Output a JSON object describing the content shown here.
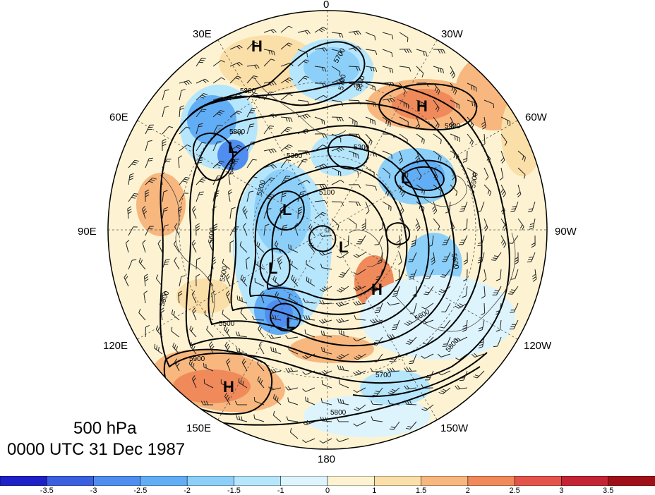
{
  "title": {
    "level": "500 hPa",
    "time": "0000 UTC 31 Dec 1987"
  },
  "map": {
    "projection": "north-polar-stereographic",
    "longitude_labels": [
      "0",
      "30W",
      "60W",
      "90W",
      "120W",
      "150W",
      "180",
      "150E",
      "120E",
      "90E",
      "60E",
      "30E"
    ],
    "pressure_systems": [
      {
        "type": "H"
      },
      {
        "type": "H"
      },
      {
        "type": "H"
      },
      {
        "type": "H"
      },
      {
        "type": "L"
      },
      {
        "type": "L"
      },
      {
        "type": "L"
      },
      {
        "type": "L"
      },
      {
        "type": "L"
      },
      {
        "type": "L"
      }
    ],
    "contour_labels": [
      "5700",
      "5800",
      "5800",
      "5900",
      "5900",
      "5800",
      "5300",
      "5300",
      "5400",
      "5200",
      "5100",
      "5600",
      "5500",
      "5800",
      "5600",
      "5700",
      "5800",
      "5800",
      "5900",
      "5500",
      "5700",
      "5600"
    ]
  },
  "colorbar": {
    "ticks": [
      "-3.5",
      "-3",
      "-2.5",
      "-2",
      "-1.5",
      "-1",
      "0",
      "1",
      "1.5",
      "2",
      "2.5",
      "3",
      "3.5"
    ],
    "colors": [
      "#2020c8",
      "#3a60e0",
      "#4f8ef0",
      "#62aef6",
      "#8cd0fa",
      "#b6e6fc",
      "#ddf4fd",
      "#fdf3d2",
      "#fbdfa8",
      "#f7b77e",
      "#f08a5a",
      "#e4544a",
      "#c42434",
      "#a01018"
    ]
  }
}
